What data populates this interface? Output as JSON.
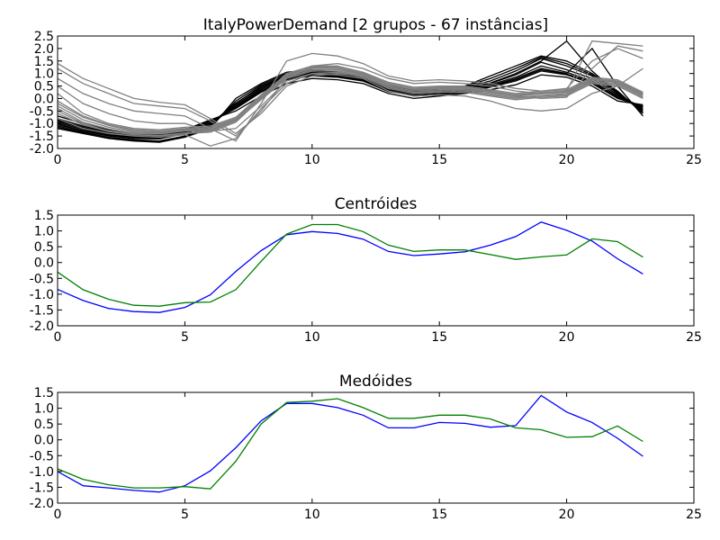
{
  "chart_data": [
    {
      "type": "line",
      "title": "ItalyPowerDemand [2 grupos - 67 instâncias]",
      "xlabel": "",
      "ylabel": "",
      "xlim": [
        0,
        25
      ],
      "ylim": [
        -2.0,
        2.5
      ],
      "xticks": [
        "0",
        "5",
        "10",
        "15",
        "20",
        "25"
      ],
      "yticks": [
        "-2.0",
        "-1.5",
        "-1.0",
        "-0.5",
        "0.0",
        "0.5",
        "1.0",
        "1.5",
        "2.0",
        "2.5"
      ],
      "grid": false,
      "series_colors": [
        "#000000",
        "#808080"
      ],
      "series": [
        {
          "color_index": 0,
          "values": [
            -0.95,
            -1.25,
            -1.45,
            -1.55,
            -1.58,
            -1.35,
            -1.0,
            -0.3,
            0.35,
            0.85,
            1.0,
            0.95,
            0.75,
            0.35,
            0.2,
            0.25,
            0.35,
            0.55,
            0.85,
            1.3,
            1.05,
            0.7,
            0.1,
            -0.35
          ]
        },
        {
          "color_index": 0,
          "values": [
            -1.1,
            -1.35,
            -1.55,
            -1.65,
            -1.7,
            -1.5,
            -1.1,
            -0.2,
            0.5,
            0.95,
            1.1,
            1.0,
            0.8,
            0.45,
            0.3,
            0.35,
            0.45,
            0.7,
            1.1,
            1.6,
            1.3,
            0.9,
            0.2,
            -0.5
          ]
        },
        {
          "color_index": 0,
          "values": [
            -0.8,
            -1.1,
            -1.35,
            -1.45,
            -1.5,
            -1.3,
            -0.9,
            -0.4,
            0.25,
            0.75,
            0.9,
            0.85,
            0.7,
            0.3,
            0.1,
            0.15,
            0.25,
            0.45,
            0.7,
            1.1,
            0.95,
            0.6,
            0.0,
            -0.3
          ]
        },
        {
          "color_index": 0,
          "values": [
            -1.2,
            -1.4,
            -1.6,
            -1.7,
            -1.75,
            -1.55,
            -1.2,
            0.0,
            0.6,
            1.05,
            1.15,
            1.05,
            0.85,
            0.5,
            0.35,
            0.4,
            0.5,
            0.9,
            1.3,
            1.7,
            1.5,
            1.0,
            0.3,
            -0.6
          ]
        },
        {
          "color_index": 0,
          "values": [
            -0.7,
            -1.0,
            -1.25,
            -1.4,
            -1.45,
            -1.25,
            -0.85,
            -0.5,
            0.1,
            0.6,
            0.8,
            0.75,
            0.6,
            0.2,
            0.0,
            0.1,
            0.2,
            0.35,
            0.55,
            0.95,
            0.85,
            0.5,
            -0.1,
            -0.25
          ]
        },
        {
          "color_index": 0,
          "values": [
            -1.0,
            -1.3,
            -1.5,
            -1.6,
            -1.62,
            -1.4,
            -1.05,
            -0.25,
            0.4,
            0.9,
            1.05,
            0.98,
            0.78,
            0.4,
            0.25,
            0.3,
            0.4,
            0.6,
            0.95,
            1.45,
            1.15,
            0.8,
            0.15,
            -0.4
          ]
        },
        {
          "color_index": 0,
          "values": [
            -0.9,
            -1.2,
            -1.42,
            -1.52,
            -1.55,
            -1.33,
            -0.95,
            -0.35,
            0.3,
            0.8,
            0.95,
            0.9,
            0.72,
            0.32,
            0.15,
            0.2,
            0.3,
            0.5,
            0.8,
            1.2,
            1.0,
            2.0,
            0.5,
            -0.7
          ]
        },
        {
          "color_index": 0,
          "values": [
            -1.15,
            -1.38,
            -1.58,
            -1.68,
            -1.72,
            -1.52,
            -1.15,
            -0.1,
            0.55,
            1.0,
            1.12,
            1.02,
            0.82,
            0.48,
            0.32,
            0.38,
            0.48,
            0.8,
            1.2,
            1.65,
            1.4,
            0.95,
            0.25,
            -0.55
          ]
        },
        {
          "color_index": 0,
          "values": [
            -1.05,
            -1.3,
            -1.48,
            -1.58,
            -1.6,
            -1.42,
            -1.02,
            -0.18,
            0.45,
            0.92,
            1.02,
            0.96,
            0.76,
            0.42,
            0.26,
            0.3,
            0.42,
            0.62,
            1.0,
            1.5,
            2.3,
            1.1,
            0.2,
            -0.45
          ]
        },
        {
          "color_index": 0,
          "values": [
            -0.85,
            -1.15,
            -1.38,
            -1.48,
            -1.52,
            -1.3,
            -0.92,
            -0.38,
            0.28,
            0.78,
            0.92,
            0.88,
            0.7,
            0.28,
            0.12,
            0.18,
            0.28,
            0.48,
            0.75,
            1.15,
            0.98,
            0.65,
            0.05,
            -0.32
          ]
        },
        {
          "color_index": 1,
          "values": [
            -0.3,
            -0.85,
            -1.15,
            -1.35,
            -1.38,
            -1.27,
            -1.25,
            -0.85,
            0.05,
            0.9,
            1.2,
            1.2,
            0.98,
            0.55,
            0.35,
            0.4,
            0.4,
            0.25,
            0.1,
            0.18,
            0.25,
            0.75,
            0.65,
            0.15
          ]
        },
        {
          "color_index": 1,
          "values": [
            1.2,
            0.6,
            0.2,
            -0.2,
            -0.3,
            -0.4,
            -0.9,
            -1.5,
            -0.5,
            0.8,
            1.3,
            1.4,
            1.2,
            0.8,
            0.6,
            0.65,
            0.6,
            0.5,
            0.3,
            0.2,
            0.3,
            2.3,
            2.2,
            2.1
          ]
        },
        {
          "color_index": 1,
          "values": [
            -0.5,
            -1.0,
            -1.3,
            -1.45,
            -1.5,
            -1.4,
            -1.35,
            -0.95,
            0.0,
            0.85,
            1.15,
            1.15,
            0.95,
            0.5,
            0.3,
            0.35,
            0.35,
            0.2,
            0.05,
            0.12,
            0.2,
            0.7,
            0.6,
            0.1
          ]
        },
        {
          "color_index": 1,
          "values": [
            0.2,
            -0.6,
            -1.0,
            -1.2,
            -1.25,
            -1.15,
            -1.1,
            -0.75,
            0.15,
            0.95,
            1.25,
            1.25,
            1.02,
            0.6,
            0.4,
            0.45,
            0.45,
            0.3,
            0.15,
            0.25,
            0.3,
            0.8,
            0.7,
            0.2
          ]
        },
        {
          "color_index": 1,
          "values": [
            -0.8,
            -1.2,
            -1.4,
            -1.5,
            -1.55,
            -1.45,
            -1.9,
            -1.6,
            -0.4,
            0.6,
            1.0,
            1.05,
            0.85,
            0.4,
            0.2,
            0.25,
            0.25,
            0.1,
            -0.05,
            0.05,
            0.1,
            0.6,
            0.5,
            0.0
          ]
        },
        {
          "color_index": 1,
          "values": [
            0.8,
            0.2,
            -0.2,
            -0.5,
            -0.6,
            -0.7,
            -1.2,
            -1.7,
            -0.2,
            1.5,
            1.8,
            1.7,
            1.4,
            0.9,
            0.7,
            0.75,
            0.7,
            0.6,
            0.4,
            0.3,
            0.4,
            1.5,
            2.0,
            1.6
          ]
        },
        {
          "color_index": 1,
          "values": [
            -0.1,
            -0.7,
            -1.05,
            -1.25,
            -1.3,
            -1.2,
            -1.15,
            -0.8,
            0.1,
            1.0,
            1.3,
            1.3,
            1.05,
            0.65,
            0.45,
            0.5,
            0.5,
            0.35,
            0.2,
            0.3,
            0.35,
            0.85,
            0.75,
            0.25
          ]
        },
        {
          "color_index": 1,
          "values": [
            -0.6,
            -1.05,
            -1.32,
            -1.45,
            -1.48,
            -1.38,
            -1.3,
            -0.9,
            -0.05,
            0.8,
            1.1,
            1.1,
            0.9,
            0.45,
            0.25,
            0.3,
            0.3,
            0.15,
            0.0,
            0.1,
            0.15,
            0.65,
            0.55,
            0.05
          ]
        },
        {
          "color_index": 1,
          "values": [
            0.5,
            -0.2,
            -0.6,
            -0.9,
            -1.0,
            -1.0,
            -1.3,
            -1.2,
            -0.3,
            0.7,
            1.0,
            0.95,
            0.8,
            0.3,
            0.1,
            0.15,
            0.1,
            -0.1,
            -0.4,
            -0.5,
            -0.4,
            0.2,
            0.5,
            1.2
          ]
        },
        {
          "color_index": 1,
          "values": [
            -0.4,
            -0.95,
            -1.22,
            -1.4,
            -1.42,
            -1.3,
            -1.28,
            -0.88,
            0.08,
            0.92,
            1.22,
            1.22,
            1.0,
            0.58,
            0.38,
            0.42,
            0.42,
            0.28,
            0.12,
            0.2,
            0.28,
            0.78,
            0.68,
            0.18
          ]
        },
        {
          "color_index": 1,
          "values": [
            1.4,
            0.8,
            0.4,
            0.0,
            -0.15,
            -0.25,
            -0.8,
            -1.4,
            -0.6,
            0.5,
            0.9,
            1.0,
            0.9,
            0.6,
            0.4,
            0.5,
            0.45,
            0.3,
            0.1,
            0.0,
            0.05,
            1.2,
            2.1,
            1.9
          ]
        },
        {
          "color_index": 1,
          "values": [
            -0.2,
            -0.75,
            -1.08,
            -1.3,
            -1.35,
            -1.22,
            -1.2,
            -0.82,
            0.12,
            0.95,
            1.25,
            1.23,
            1.0,
            0.56,
            0.36,
            0.42,
            0.42,
            0.26,
            0.12,
            0.22,
            0.28,
            0.76,
            0.66,
            0.16
          ]
        }
      ]
    },
    {
      "type": "line",
      "title": "Centróides",
      "xlabel": "",
      "ylabel": "",
      "xlim": [
        0,
        25
      ],
      "ylim": [
        -2.0,
        1.5
      ],
      "xticks": [
        "0",
        "5",
        "10",
        "15",
        "20",
        "25"
      ],
      "yticks": [
        "-2.0",
        "-1.5",
        "-1.0",
        "-0.5",
        "0.0",
        "0.5",
        "1.0",
        "1.5"
      ],
      "grid": false,
      "series_colors": [
        "#0000ff",
        "#008000"
      ],
      "series": [
        {
          "color_index": 0,
          "values": [
            -0.85,
            -1.2,
            -1.45,
            -1.55,
            -1.58,
            -1.42,
            -1.02,
            -0.28,
            0.38,
            0.88,
            0.98,
            0.92,
            0.74,
            0.35,
            0.22,
            0.27,
            0.34,
            0.55,
            0.82,
            1.28,
            1.02,
            0.68,
            0.12,
            -0.36
          ]
        },
        {
          "color_index": 1,
          "values": [
            -0.3,
            -0.86,
            -1.16,
            -1.35,
            -1.38,
            -1.27,
            -1.25,
            -0.86,
            0.04,
            0.9,
            1.2,
            1.2,
            0.98,
            0.55,
            0.35,
            0.4,
            0.4,
            0.25,
            0.1,
            0.18,
            0.24,
            0.75,
            0.66,
            0.17
          ]
        }
      ]
    },
    {
      "type": "line",
      "title": "Medóides",
      "xlabel": "",
      "ylabel": "",
      "xlim": [
        0,
        25
      ],
      "ylim": [
        -2.0,
        1.5
      ],
      "xticks": [
        "0",
        "5",
        "10",
        "15",
        "20",
        "25"
      ],
      "yticks": [
        "-2.0",
        "-1.5",
        "-1.0",
        "-0.5",
        "0.0",
        "0.5",
        "1.0",
        "1.5"
      ],
      "grid": false,
      "series_colors": [
        "#0000ff",
        "#008000"
      ],
      "series": [
        {
          "color_index": 0,
          "values": [
            -1.0,
            -1.45,
            -1.52,
            -1.6,
            -1.65,
            -1.45,
            -0.98,
            -0.25,
            0.6,
            1.15,
            1.15,
            1.02,
            0.78,
            0.38,
            0.38,
            0.55,
            0.52,
            0.4,
            0.45,
            1.4,
            0.88,
            0.55,
            0.05,
            -0.52
          ]
        },
        {
          "color_index": 1,
          "values": [
            -0.92,
            -1.25,
            -1.42,
            -1.52,
            -1.52,
            -1.48,
            -1.55,
            -0.68,
            0.5,
            1.18,
            1.22,
            1.3,
            1.02,
            0.68,
            0.68,
            0.78,
            0.78,
            0.66,
            0.38,
            0.32,
            0.08,
            0.1,
            0.44,
            -0.05
          ]
        }
      ]
    }
  ]
}
